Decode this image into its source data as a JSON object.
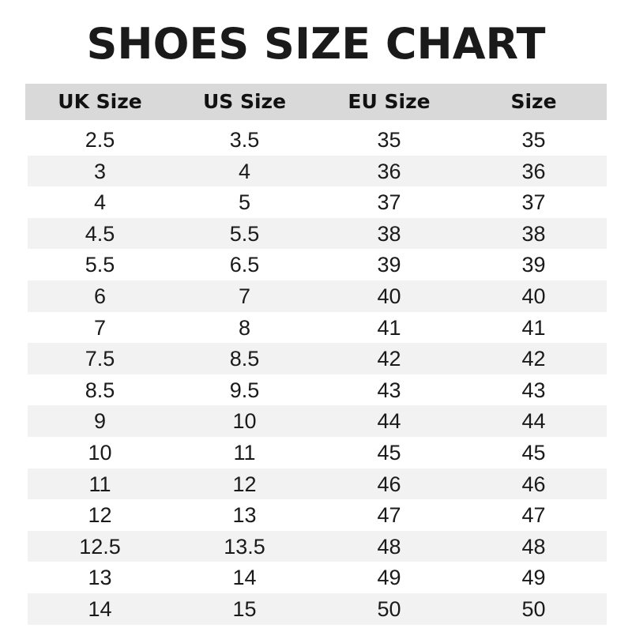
{
  "title": "SHOES SIZE CHART",
  "colors": {
    "header_bg": "#d9d9d9",
    "alt_row_bg": "#f2f2f2"
  },
  "headers": [
    "UK Size",
    "US Size",
    "EU Size",
    "Size"
  ],
  "rows": [
    [
      "2.5",
      "3.5",
      "35",
      "35"
    ],
    [
      "3",
      "4",
      "36",
      "36"
    ],
    [
      "4",
      "5",
      "37",
      "37"
    ],
    [
      "4.5",
      "5.5",
      "38",
      "38"
    ],
    [
      "5.5",
      "6.5",
      "39",
      "39"
    ],
    [
      "6",
      "7",
      "40",
      "40"
    ],
    [
      "7",
      "8",
      "41",
      "41"
    ],
    [
      "7.5",
      "8.5",
      "42",
      "42"
    ],
    [
      "8.5",
      "9.5",
      "43",
      "43"
    ],
    [
      "9",
      "10",
      "44",
      "44"
    ],
    [
      "10",
      "11",
      "45",
      "45"
    ],
    [
      "11",
      "12",
      "46",
      "46"
    ],
    [
      "12",
      "13",
      "47",
      "47"
    ],
    [
      "12.5",
      "13.5",
      "48",
      "48"
    ],
    [
      "13",
      "14",
      "49",
      "49"
    ],
    [
      "14",
      "15",
      "50",
      "50"
    ]
  ]
}
